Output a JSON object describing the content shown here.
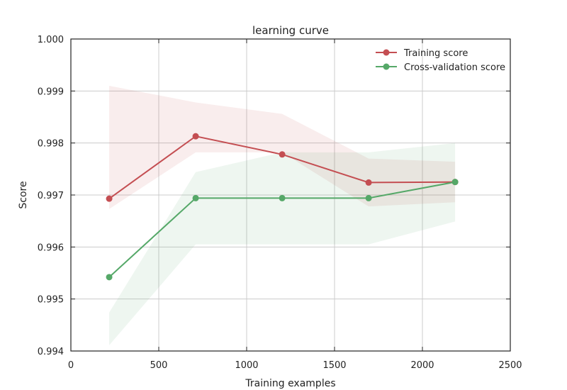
{
  "chart_data": {
    "type": "line",
    "title": "learning curve",
    "xlabel": "Training examples",
    "ylabel": "Score",
    "xlim": [
      0,
      2500
    ],
    "ylim": [
      0.994,
      1.0
    ],
    "xticks": [
      "0",
      "500",
      "1000",
      "1500",
      "2000",
      "2500"
    ],
    "yticks": [
      "0.994",
      "0.995",
      "0.996",
      "0.997",
      "0.998",
      "0.999",
      "1.000"
    ],
    "grid": true,
    "legend_position": "top-right",
    "x": [
      218,
      710,
      1202,
      1694,
      2186
    ],
    "series": [
      {
        "name": "Training score",
        "color": "#c44e52",
        "values": [
          0.99693,
          0.99813,
          0.99778,
          0.99724,
          0.99725
        ],
        "band_lower": [
          0.99673,
          0.99782,
          0.99782,
          0.99678,
          0.99686
        ],
        "band_upper": [
          0.9991,
          0.99878,
          0.99856,
          0.9977,
          0.99764
        ]
      },
      {
        "name": "Cross-validation score",
        "color": "#55a868",
        "values": [
          0.99542,
          0.99694,
          0.99694,
          0.99694,
          0.99725
        ],
        "band_lower": [
          0.99411,
          0.99605,
          0.99605,
          0.99605,
          0.99649
        ],
        "band_upper": [
          0.99474,
          0.99744,
          0.99782,
          0.99782,
          0.998
        ]
      }
    ]
  }
}
